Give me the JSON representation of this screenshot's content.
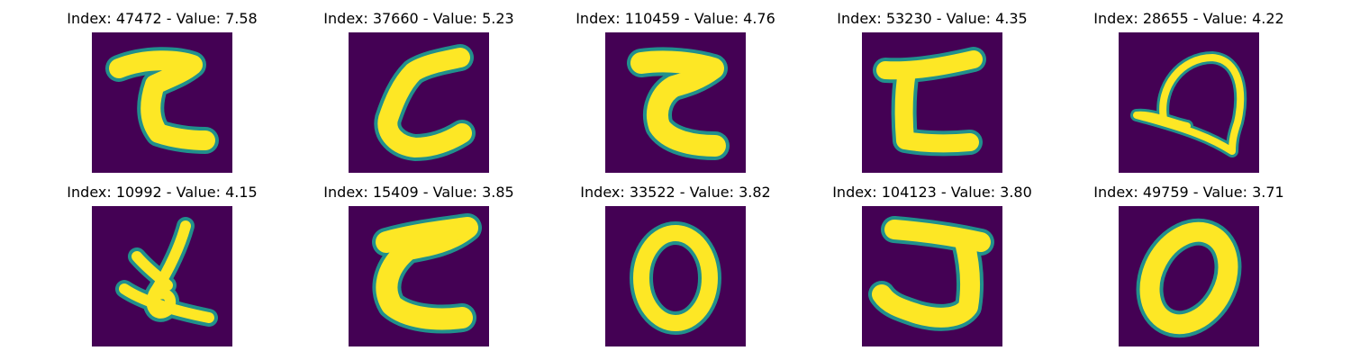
{
  "figure": {
    "colors": {
      "background": "#440154",
      "stroke_edge": "#21908c",
      "stroke_core": "#fde725"
    },
    "panels": [
      {
        "title": "Index: 47472 - Value: 7.58",
        "depicts": "handwritten stroke glyph resembling a squared C"
      },
      {
        "title": "Index: 37660 - Value: 5.23",
        "depicts": "handwritten stroke glyph resembling a C"
      },
      {
        "title": "Index: 110459 - Value: 4.76",
        "depicts": "handwritten stroke glyph resembling a C with a notch"
      },
      {
        "title": "Index: 53230 - Value: 4.35",
        "depicts": "handwritten stroke glyph resembling an L with top bar"
      },
      {
        "title": "Index: 28655 - Value: 4.22",
        "depicts": "handwritten loop glyph with a tail"
      },
      {
        "title": "Index: 10992 - Value: 4.15",
        "depicts": "handwritten glyph with small loop and crossing strokes"
      },
      {
        "title": "Index: 15409 - Value: 3.85",
        "depicts": "handwritten stroke glyph resembling a C"
      },
      {
        "title": "Index: 33522 - Value: 3.82",
        "depicts": "handwritten zero shaped loop"
      },
      {
        "title": "Index: 104123 - Value: 3.80",
        "depicts": "handwritten stroke glyph resembling a J or 5"
      },
      {
        "title": "Index: 49759 - Value: 3.71",
        "depicts": "handwritten zero shaped loop"
      }
    ]
  }
}
